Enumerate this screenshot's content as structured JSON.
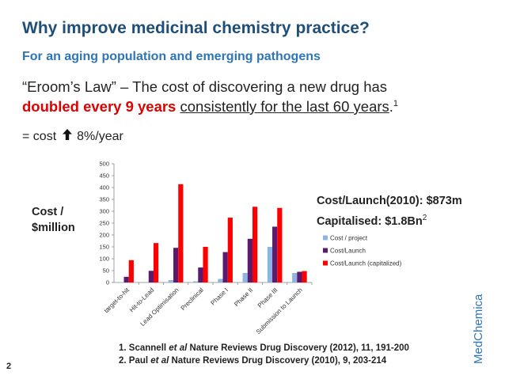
{
  "slide": {
    "title": "Why improve medicinal chemistry practice?",
    "subtitle": "For an aging population and emerging pathogens",
    "line1": "“Eroom’s Law” – The cost of discovering a new drug has",
    "line2_red": "doubled every 9 years",
    "line2_ul": "consistently for the last 60 years",
    "line2_end": ".",
    "line2_sup": "1",
    "line3_prefix": "= cost",
    "line3_suffix": "8%/year",
    "ylabel_1": "Cost /",
    "ylabel_2": "$million",
    "info_1": "Cost/Launch(2010): $873m",
    "info_2": "Capitalised: $1.8Bn",
    "info_2_sup": "2",
    "brand": "MedChemica",
    "ref1_a": "1. Scannell ",
    "ref1_i": "et al",
    "ref1_b": " Nature Reviews Drug Discovery (2012), 11, 191-200",
    "ref2_a": "2. Paul ",
    "ref2_i": "et al",
    "ref2_b": " Nature Reviews Drug Discovery (2010), 9, 203-214",
    "page": "2"
  },
  "chart_data": {
    "type": "bar",
    "title": "",
    "xlabel": "",
    "ylabel": "Cost / $million",
    "ylim": [
      0,
      500
    ],
    "yticks": [
      0,
      50,
      100,
      150,
      200,
      250,
      300,
      350,
      400,
      450,
      500
    ],
    "categories": [
      "target-to-hit",
      "Hit-to-Lead",
      "Lead Optimisation",
      "Preclinical",
      "Phase I",
      "Phase II",
      "Phase III",
      "Submission to Launch"
    ],
    "series": [
      {
        "name": "Cost / project",
        "color": "#8eb4e3",
        "values": [
          1,
          2,
          10,
          5,
          15,
          40,
          150,
          40
        ]
      },
      {
        "name": "Cost/Launch",
        "color": "#5b1a6e",
        "values": [
          24,
          49,
          146,
          63,
          128,
          184,
          235,
          45
        ]
      },
      {
        "name": "Cost/Launch (capitalized)",
        "color": "#ff0000",
        "values": [
          94,
          166,
          414,
          150,
          273,
          319,
          314,
          48
        ]
      }
    ],
    "legend": "right"
  }
}
